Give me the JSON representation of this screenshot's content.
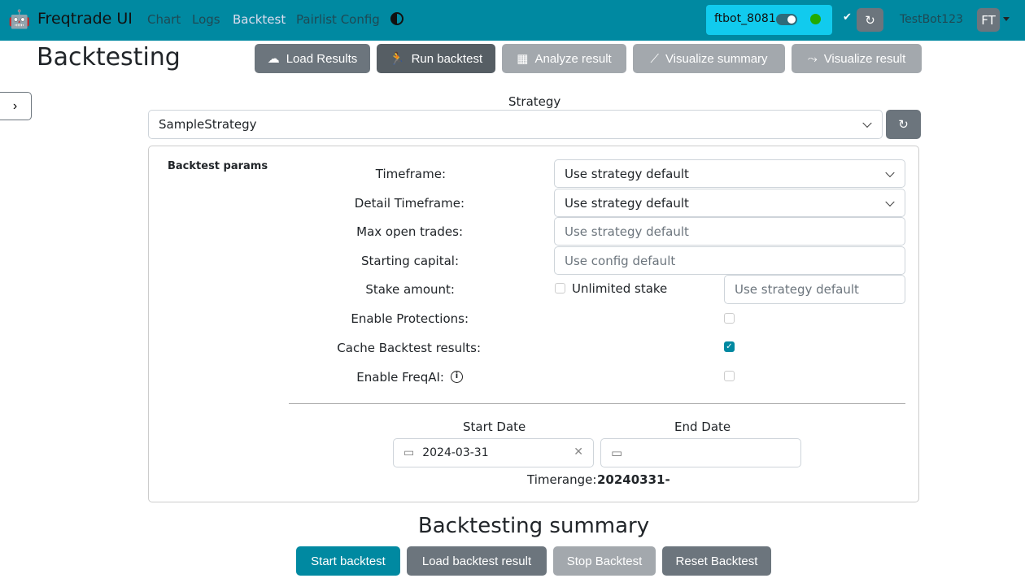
{
  "nav": {
    "brand": "Freqtrade UI",
    "links": [
      "Chart",
      "Logs",
      "Backtest",
      "Pairlist Config"
    ],
    "active": "Backtest",
    "bot_name": "ftbot_8081",
    "bot_online": true,
    "status_color": "#22aa00",
    "user": "TestBot123",
    "avatar": "FT"
  },
  "page": {
    "title": "Backtesting"
  },
  "toolbar": [
    "Load Results",
    "Run backtest",
    "Analyze result",
    "Visualize summary",
    "Visualize result"
  ],
  "strategy": {
    "label": "Strategy",
    "value": "SampleStrategy"
  },
  "params": {
    "title": "Backtest params",
    "timeframe_label": "Timeframe:",
    "timeframe": "Use strategy default",
    "detail_label": "Detail Timeframe:",
    "detail": "Use strategy default",
    "max_open_label": "Max open trades:",
    "max_open_placeholder": "Use strategy default",
    "capital_label": "Starting capital:",
    "capital_placeholder": "Use config default",
    "stake_label": "Stake amount:",
    "unlimited_label": "Unlimited stake",
    "unlimited": false,
    "stake_placeholder": "Use strategy default",
    "protections_label": "Enable Protections:",
    "protections": false,
    "cache_label": "Cache Backtest results:",
    "cache": true,
    "freqai_label": "Enable FreqAI:",
    "freqai": false,
    "start_label": "Start Date",
    "start": "2024-03-31",
    "end_label": "End Date",
    "end": "",
    "timerange_label": "Timerange:",
    "timerange": "20240331-"
  },
  "summary": {
    "title": "Backtesting summary",
    "buttons": [
      "Start backtest",
      "Load backtest result",
      "Stop Backtest",
      "Reset Backtest"
    ]
  }
}
